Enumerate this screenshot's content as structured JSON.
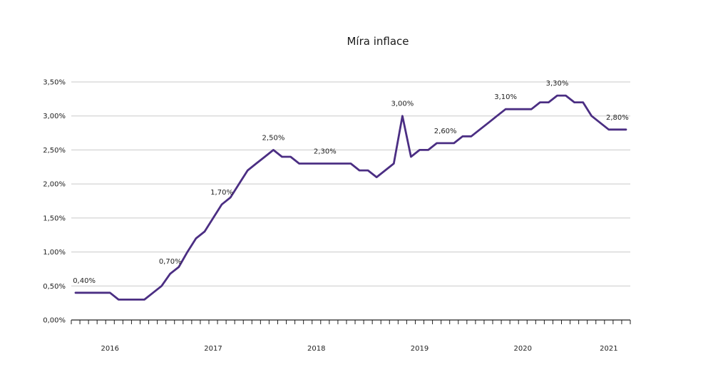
{
  "chart_data": {
    "type": "line",
    "title": "Míra inflace",
    "xlabel": "",
    "ylabel": "",
    "ylim": [
      0,
      3.5
    ],
    "y_ticks": [
      0,
      0.5,
      1,
      1.5,
      2,
      2.5,
      3,
      3.5
    ],
    "y_tick_labels": [
      "0,00%",
      "0,50%",
      "1,00%",
      "1,50%",
      "2,00%",
      "2,50%",
      "3,00%",
      "3,50%"
    ],
    "x_axis": {
      "start": 0,
      "end": 65,
      "minor_tick_count": 66
    },
    "year_labels": [
      {
        "text": "2016",
        "x": 4.5
      },
      {
        "text": "2017",
        "x": 16.5
      },
      {
        "text": "2018",
        "x": 28.5
      },
      {
        "text": "2019",
        "x": 40.5
      },
      {
        "text": "2020",
        "x": 52.5
      },
      {
        "text": "2021",
        "x": 62.5
      }
    ],
    "grid": true,
    "legend": "none",
    "line_color": "#4b2e83",
    "series": [
      {
        "points": [
          [
            0.5,
            0.4
          ],
          [
            1.5,
            0.4
          ],
          [
            2.5,
            0.4
          ],
          [
            3.5,
            0.4
          ],
          [
            4.5,
            0.4
          ],
          [
            5.5,
            0.3
          ],
          [
            6.5,
            0.3
          ],
          [
            7.5,
            0.3
          ],
          [
            8.5,
            0.3
          ],
          [
            9.5,
            0.4
          ],
          [
            10.5,
            0.5
          ],
          [
            11.5,
            0.68
          ],
          [
            12.5,
            0.78
          ],
          [
            13.5,
            1.0
          ],
          [
            14.5,
            1.2
          ],
          [
            15.5,
            1.3
          ],
          [
            16.5,
            1.5
          ],
          [
            17.5,
            1.7
          ],
          [
            18.5,
            1.8
          ],
          [
            19.5,
            2.0
          ],
          [
            20.5,
            2.2
          ],
          [
            21.5,
            2.3
          ],
          [
            22.5,
            2.4
          ],
          [
            23.5,
            2.5
          ],
          [
            24.5,
            2.4
          ],
          [
            25.5,
            2.4
          ],
          [
            26.5,
            2.3
          ],
          [
            27.5,
            2.3
          ],
          [
            28.5,
            2.3
          ],
          [
            29.5,
            2.3
          ],
          [
            30.5,
            2.3
          ],
          [
            31.5,
            2.3
          ],
          [
            32.5,
            2.3
          ],
          [
            33.5,
            2.2
          ],
          [
            34.5,
            2.2
          ],
          [
            35.5,
            2.1
          ],
          [
            36.5,
            2.2
          ],
          [
            37.5,
            2.3
          ],
          [
            38.5,
            3.0
          ],
          [
            39.5,
            2.4
          ],
          [
            40.5,
            2.5
          ],
          [
            41.5,
            2.5
          ],
          [
            42.5,
            2.6
          ],
          [
            43.5,
            2.6
          ],
          [
            44.5,
            2.6
          ],
          [
            45.5,
            2.7
          ],
          [
            46.5,
            2.7
          ],
          [
            47.5,
            2.8
          ],
          [
            48.5,
            2.9
          ],
          [
            49.5,
            3.0
          ],
          [
            50.5,
            3.1
          ],
          [
            51.5,
            3.1
          ],
          [
            52.5,
            3.1
          ],
          [
            53.5,
            3.1
          ],
          [
            54.5,
            3.2
          ],
          [
            55.5,
            3.2
          ],
          [
            56.5,
            3.3
          ],
          [
            57.5,
            3.3
          ],
          [
            58.5,
            3.2
          ],
          [
            59.5,
            3.2
          ],
          [
            60.5,
            3.0
          ],
          [
            61.5,
            2.9
          ],
          [
            62.5,
            2.8
          ],
          [
            63.5,
            2.8
          ],
          [
            64.5,
            2.8
          ]
        ]
      }
    ],
    "annotations": [
      {
        "text": "0,40%",
        "x": 1.5,
        "y": 0.4
      },
      {
        "text": "0,70%",
        "x": 11.5,
        "y": 0.68
      },
      {
        "text": "1,70%",
        "x": 17.5,
        "y": 1.7
      },
      {
        "text": "2,50%",
        "x": 23.5,
        "y": 2.5
      },
      {
        "text": "2,30%",
        "x": 29.5,
        "y": 2.3
      },
      {
        "text": "3,00%",
        "x": 38.5,
        "y": 3.0
      },
      {
        "text": "2,60%",
        "x": 43.5,
        "y": 2.6
      },
      {
        "text": "3,10%",
        "x": 50.5,
        "y": 3.1
      },
      {
        "text": "3,30%",
        "x": 56.5,
        "y": 3.3
      },
      {
        "text": "2,80%",
        "x": 63.5,
        "y": 2.8
      }
    ]
  }
}
